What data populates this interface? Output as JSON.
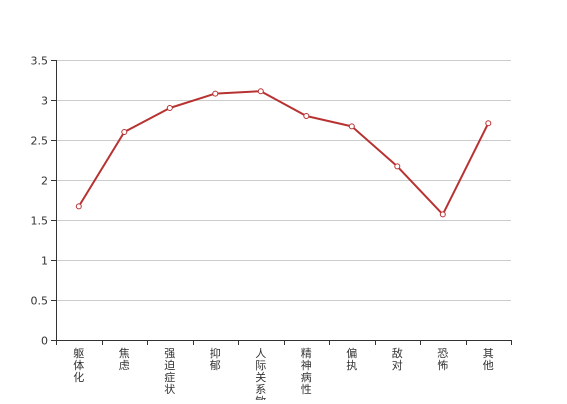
{
  "chart_data": {
    "type": "line",
    "categories": [
      "躯体化",
      "焦虑",
      "强迫症状",
      "抑郁",
      "人际关系敏感",
      "精神病性",
      "偏执",
      "敌对",
      "恐怖",
      "其他"
    ],
    "series": [
      {
        "values": [
          1.67,
          2.6,
          2.9,
          3.08,
          3.11,
          2.8,
          2.67,
          2.17,
          1.57,
          2.71
        ]
      }
    ],
    "ylim": [
      0,
      3.5
    ],
    "yticks": [
      "0",
      "0.5",
      "1",
      "1.5",
      "2",
      "2.5",
      "3",
      "3.5"
    ],
    "grid": true,
    "legend": "none",
    "colors": {
      "line": "#b83232",
      "grid": "#cccccc",
      "axis": "#333333"
    }
  }
}
